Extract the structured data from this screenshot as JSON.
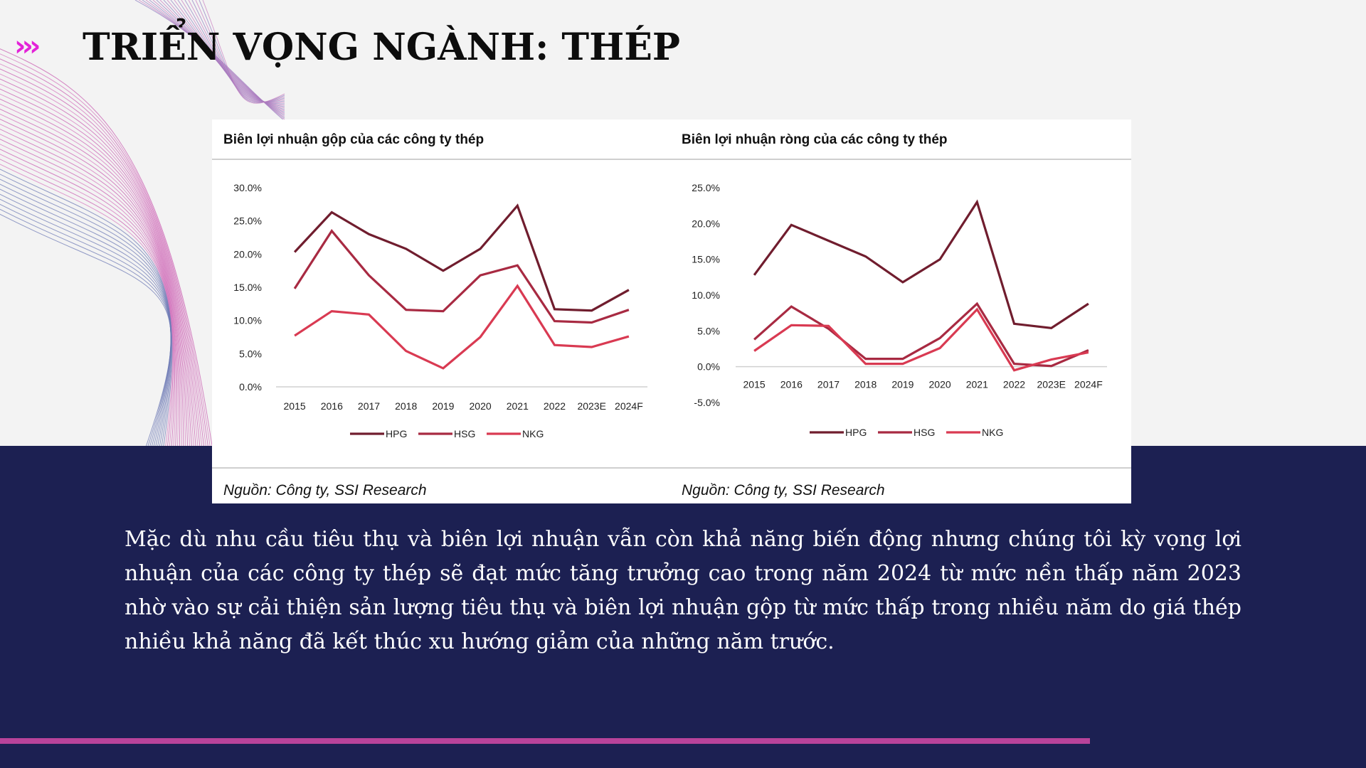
{
  "slide": {
    "title": "TRIỂN VỌNG NGÀNH: THÉP",
    "title_arrows": "›››",
    "body": "Mặc dù nhu cầu tiêu thụ và biên lợi nhuận vẫn còn khả năng biến động nhưng chúng tôi kỳ vọng lợi nhuận của các công ty thép sẽ đạt mức tăng trưởng cao trong năm 2024 từ mức nền thấp năm 2023 nhờ vào sự cải thiện sản lượng tiêu thụ và biên lợi nhuận gộp từ mức thấp trong nhiều năm do giá thép nhiều khả năng đã kết thúc xu hướng giảm của những năm trước.",
    "colors": {
      "band": "#1c2052",
      "accent": "#b8439a",
      "arrows": "#e323d8"
    }
  },
  "chart_data": [
    {
      "type": "line",
      "title": "Biên lợi nhuận gộp của các công ty thép",
      "source": "Nguồn: Công ty, SSI Research",
      "categories": [
        "2015",
        "2016",
        "2017",
        "2018",
        "2019",
        "2020",
        "2021",
        "2022",
        "2023E",
        "2024F"
      ],
      "yticks": [
        "30.0%",
        "25.0%",
        "20.0%",
        "15.0%",
        "10.0%",
        "5.0%",
        "0.0%"
      ],
      "ylim": [
        0,
        30
      ],
      "legend_position": "bottom",
      "grid": false,
      "series": [
        {
          "name": "HPG",
          "color": "#701d2e",
          "values": [
            20.3,
            26.3,
            23.0,
            20.8,
            17.5,
            20.8,
            27.3,
            11.7,
            11.5,
            14.6
          ]
        },
        {
          "name": "HSG",
          "color": "#a82a42",
          "values": [
            14.8,
            23.5,
            16.8,
            11.6,
            11.4,
            16.8,
            18.3,
            9.9,
            9.7,
            11.6
          ]
        },
        {
          "name": "NKG",
          "color": "#d93a52",
          "values": [
            7.7,
            11.4,
            10.9,
            5.4,
            2.8,
            7.5,
            15.2,
            6.3,
            6.0,
            7.6
          ]
        }
      ]
    },
    {
      "type": "line",
      "title": "Biên lợi nhuận ròng của các công ty thép",
      "source": "Nguồn: Công ty, SSI Research",
      "categories": [
        "2015",
        "2016",
        "2017",
        "2018",
        "2019",
        "2020",
        "2021",
        "2022",
        "2023E",
        "2024F"
      ],
      "yticks": [
        "25.0%",
        "20.0%",
        "15.0%",
        "10.0%",
        "5.0%",
        "0.0%",
        "-5.0%"
      ],
      "ylim": [
        -5,
        25
      ],
      "legend_position": "bottom",
      "grid": false,
      "series": [
        {
          "name": "HPG",
          "color": "#701d2e",
          "values": [
            12.8,
            19.8,
            17.6,
            15.4,
            11.8,
            15.0,
            23.0,
            6.0,
            5.4,
            8.8
          ]
        },
        {
          "name": "HSG",
          "color": "#a82a42",
          "values": [
            3.8,
            8.4,
            5.3,
            1.1,
            1.1,
            4.0,
            8.8,
            0.4,
            0.1,
            2.3
          ]
        },
        {
          "name": "NKG",
          "color": "#d93a52",
          "values": [
            2.2,
            5.8,
            5.7,
            0.4,
            0.4,
            2.6,
            8.0,
            -0.5,
            1.0,
            2.0
          ]
        }
      ]
    }
  ]
}
